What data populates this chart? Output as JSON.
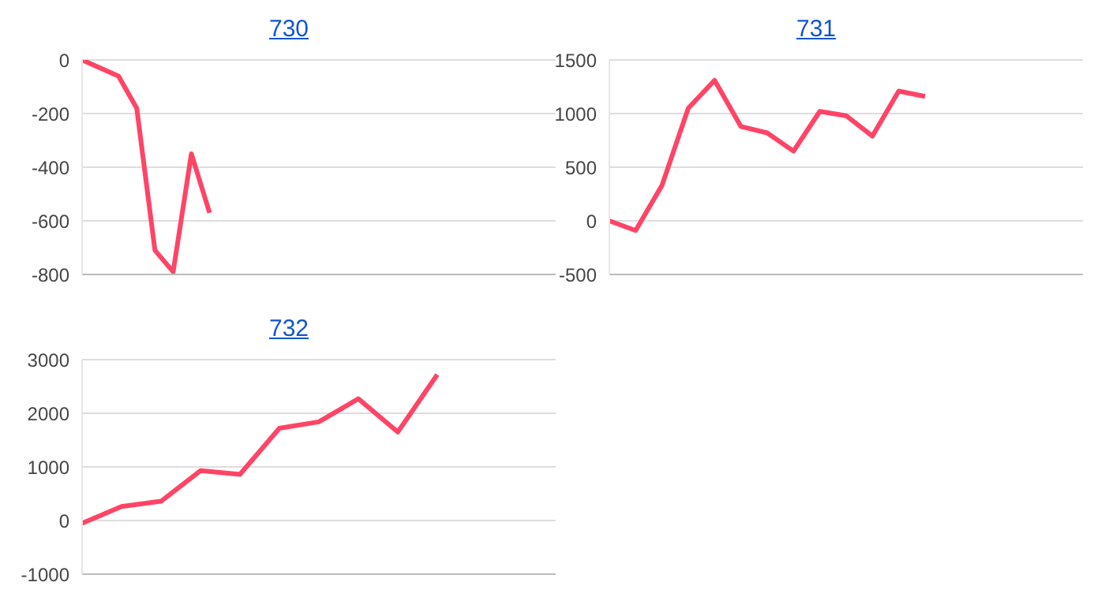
{
  "chart_data": [
    {
      "type": "line",
      "title": "730",
      "categories": [
        null,
        null,
        null,
        null,
        null,
        null,
        null,
        null,
        null,
        null,
        null,
        null,
        null,
        null,
        null,
        null,
        null,
        null,
        null,
        null,
        null,
        null,
        null,
        null,
        null,
        null,
        null
      ],
      "series": [
        {
          "color": "#ff4466",
          "values": [
            0,
            -30,
            -60,
            -180,
            -710,
            -790,
            -350,
            -570,
            null,
            null,
            null,
            null,
            null,
            null,
            null,
            null,
            null,
            null,
            null,
            null,
            null,
            null,
            null,
            null,
            null,
            null,
            null
          ]
        }
      ],
      "ylim": [
        -800,
        0
      ],
      "yticks": [
        -800,
        -600,
        -400,
        -200,
        0
      ],
      "grid": "y",
      "tick_labels": "y"
    },
    {
      "type": "line",
      "title": "731",
      "categories": [
        null,
        null,
        null,
        null,
        null,
        null,
        null,
        null,
        null,
        null,
        null,
        null,
        null,
        null,
        null,
        null,
        null,
        null,
        null
      ],
      "series": [
        {
          "color": "#ff4466",
          "values": [
            0,
            -90,
            330,
            1050,
            1310,
            880,
            820,
            650,
            1020,
            980,
            790,
            1210,
            1160,
            null,
            null,
            null,
            null,
            null,
            null
          ]
        }
      ],
      "ylim": [
        -500,
        1500
      ],
      "yticks": [
        -500,
        0,
        500,
        1000,
        1500
      ],
      "grid": "y",
      "tick_labels": "y"
    },
    {
      "type": "line",
      "title": "732",
      "categories": [
        null,
        null,
        null,
        null,
        null,
        null,
        null,
        null,
        null,
        null,
        null,
        null,
        null
      ],
      "series": [
        {
          "color": "#ff4466",
          "values": [
            -50,
            260,
            360,
            930,
            860,
            1720,
            1840,
            2270,
            1650,
            2720,
            null,
            null,
            null
          ]
        }
      ],
      "ylim": [
        -1000,
        3000
      ],
      "yticks": [
        -1000,
        0,
        1000,
        2000,
        3000
      ],
      "grid": "y",
      "tick_labels": "y"
    }
  ]
}
